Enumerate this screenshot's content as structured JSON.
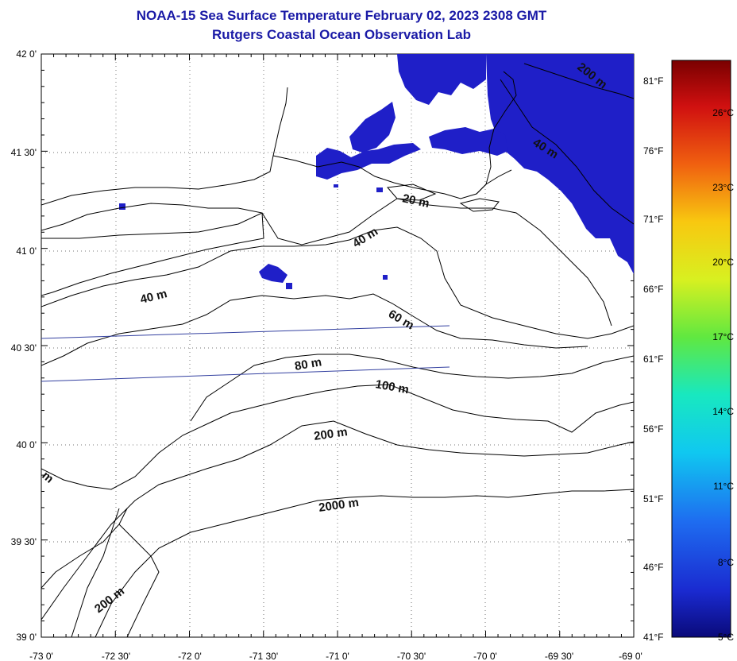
{
  "header": {
    "title": "NOAA-15 Sea Surface Temperature February 02, 2023 2308 GMT",
    "subtitle": "Rutgers Coastal Ocean Observation Lab"
  },
  "map": {
    "lon_range": [
      -73.0,
      -69.0
    ],
    "lat_range": [
      39.0,
      42.0
    ],
    "lon_labels": [
      "-73 0'",
      "-72 30'",
      "-72 0'",
      "-71 30'",
      "-71 0'",
      "-70 30'",
      "-70 0'",
      "-69 30'",
      "-69 0'"
    ],
    "lat_labels": [
      "42 0'",
      "41 30'",
      "41 0'",
      "40 30'",
      "40 0'",
      "39 30'",
      "39 0'"
    ],
    "grid": true,
    "depth_labels": [
      "200 m",
      "40 m",
      "20 m",
      "40 m",
      "40 m",
      "60 m",
      "80 m",
      "100 m",
      "200 m",
      "2000 m",
      "200 m",
      "m"
    ],
    "sst_color": "#1f1fc8"
  },
  "colorbar": {
    "min_c": 5,
    "max_c": 28,
    "celsius_labels": [
      "26°C",
      "23°C",
      "20°C",
      "17°C",
      "14°C",
      "11°C",
      "8°C",
      "5°C"
    ],
    "fahrenheit_labels": [
      "81°F",
      "76°F",
      "71°F",
      "66°F",
      "61°F",
      "56°F",
      "51°F",
      "46°F",
      "41°F"
    ]
  }
}
